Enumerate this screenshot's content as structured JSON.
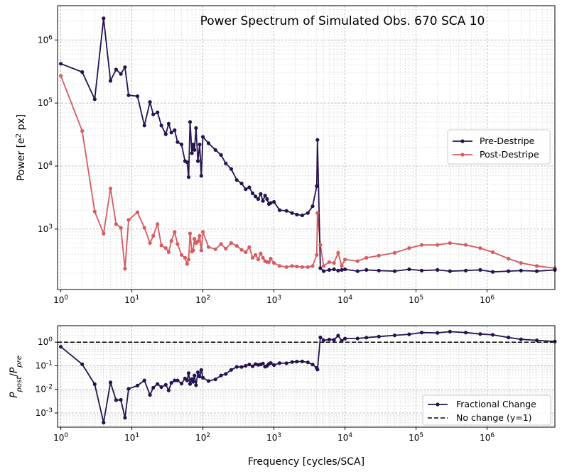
{
  "colors": {
    "pre": "#251350",
    "post": "#d55b60",
    "fractional": "#251350",
    "reference": "#000000"
  },
  "chart_data": [
    {
      "type": "line",
      "title": "Power Spectrum of Simulated Obs. 670 SCA 10",
      "xlabel": "Frequency [cycles/SCA]",
      "ylabel_main": "Power [e",
      "ylabel_sup": "2",
      "ylabel_tail": " px]",
      "xscale": "log",
      "yscale": "log",
      "xlim": [
        0.9,
        9000000
      ],
      "ylim": [
        110,
        3500000
      ],
      "xticks": [
        {
          "v": 1,
          "e": "0"
        },
        {
          "v": 10,
          "e": "1"
        },
        {
          "v": 100,
          "e": "2"
        },
        {
          "v": 1000,
          "e": "3"
        },
        {
          "v": 10000,
          "e": "4"
        },
        {
          "v": 100000,
          "e": "5"
        },
        {
          "v": 1000000,
          "e": "6"
        }
      ],
      "yticks": [
        {
          "v": 1000,
          "e": "3"
        },
        {
          "v": 10000,
          "e": "4"
        },
        {
          "v": 100000,
          "e": "5"
        },
        {
          "v": 1000000,
          "e": "6"
        }
      ],
      "legend": {
        "position": "center-right",
        "entries": [
          "Pre-Destripe",
          "Post-Destripe"
        ]
      },
      "grid": true,
      "series": [
        {
          "name": "Pre-Destripe",
          "x": [
            1,
            2,
            3,
            4,
            5,
            6,
            7,
            8,
            9,
            12,
            15,
            18,
            20,
            23,
            26,
            30,
            33,
            36,
            40,
            44,
            50,
            56,
            60,
            63,
            66,
            70,
            73,
            76,
            80,
            85,
            90,
            95,
            100,
            120,
            150,
            180,
            210,
            250,
            300,
            350,
            400,
            450,
            500,
            550,
            600,
            650,
            700,
            750,
            800,
            850,
            900,
            1000,
            1200,
            1500,
            1800,
            2100,
            2500,
            3000,
            3500,
            4000,
            4096,
            4500,
            5000,
            6000,
            7000,
            8000,
            9000,
            10000,
            15000,
            20000,
            30000,
            50000,
            80000,
            120000,
            200000,
            300000,
            500000,
            800000,
            1200000,
            2000000,
            3000000,
            5000000,
            9000000
          ],
          "values": [
            420000,
            310000,
            115000,
            2200000,
            225000,
            340000,
            290000,
            370000,
            133000,
            128000,
            44000,
            104000,
            66000,
            71000,
            44000,
            32000,
            47000,
            34000,
            37000,
            24000,
            22000,
            12000,
            11500,
            6700,
            50000,
            16000,
            22000,
            18000,
            40000,
            12000,
            22000,
            7000,
            29000,
            23000,
            18000,
            15000,
            11000,
            9000,
            6000,
            5300,
            4300,
            4600,
            3700,
            3300,
            3000,
            3600,
            2800,
            3400,
            3000,
            2500,
            2600,
            2700,
            2000,
            1950,
            1800,
            1700,
            1650,
            1800,
            2300,
            4800,
            26000,
            240,
            215,
            225,
            230,
            220,
            225,
            230,
            215,
            225,
            220,
            215,
            230,
            220,
            225,
            215,
            220,
            225,
            210,
            215,
            220,
            215,
            225
          ]
        },
        {
          "name": "Post-Destripe",
          "x": [
            1,
            2,
            3,
            4,
            5,
            6,
            7,
            8,
            9,
            12,
            15,
            18,
            20,
            23,
            26,
            30,
            33,
            36,
            40,
            44,
            50,
            56,
            60,
            63,
            66,
            70,
            73,
            76,
            80,
            85,
            90,
            95,
            100,
            120,
            150,
            180,
            210,
            250,
            300,
            350,
            400,
            450,
            500,
            550,
            600,
            650,
            700,
            750,
            800,
            850,
            900,
            1000,
            1200,
            1500,
            1800,
            2100,
            2500,
            3000,
            3500,
            4000,
            4096,
            4500,
            5000,
            6000,
            7000,
            8000,
            9000,
            10000,
            15000,
            20000,
            30000,
            50000,
            80000,
            120000,
            200000,
            300000,
            500000,
            800000,
            1200000,
            2000000,
            3000000,
            5000000,
            9000000
          ],
          "values": [
            270000,
            36000,
            1900,
            850,
            4400,
            1200,
            1050,
            235,
            1400,
            1850,
            1050,
            600,
            780,
            1200,
            550,
            500,
            430,
            650,
            900,
            580,
            390,
            350,
            280,
            330,
            850,
            440,
            460,
            700,
            600,
            640,
            780,
            460,
            900,
            520,
            480,
            580,
            490,
            600,
            540,
            470,
            430,
            520,
            350,
            390,
            330,
            410,
            350,
            310,
            300,
            300,
            340,
            290,
            260,
            250,
            260,
            255,
            250,
            250,
            260,
            390,
            1800,
            560,
            260,
            300,
            290,
            420,
            260,
            330,
            310,
            350,
            380,
            420,
            500,
            560,
            560,
            600,
            560,
            500,
            430,
            340,
            290,
            260,
            240
          ]
        }
      ]
    },
    {
      "type": "line",
      "xlabel": "Frequency [cycles/SCA]",
      "ylabel": "P_post / P_pre",
      "xscale": "log",
      "yscale": "log",
      "xlim": [
        0.9,
        9000000
      ],
      "ylim": [
        0.00025,
        5
      ],
      "xticks": [
        {
          "v": 1,
          "e": "0"
        },
        {
          "v": 10,
          "e": "1"
        },
        {
          "v": 100,
          "e": "2"
        },
        {
          "v": 1000,
          "e": "3"
        },
        {
          "v": 10000,
          "e": "4"
        },
        {
          "v": 100000,
          "e": "5"
        },
        {
          "v": 1000000,
          "e": "6"
        }
      ],
      "yticks": [
        {
          "v": 0.001,
          "e": "-3"
        },
        {
          "v": 0.01,
          "e": "-2"
        },
        {
          "v": 0.1,
          "e": "-1"
        },
        {
          "v": 1,
          "e": "0"
        }
      ],
      "legend": {
        "position": "bottom-right",
        "entries": [
          "Fractional Change",
          "No change (y=1)"
        ]
      },
      "reference_line": {
        "y": 1,
        "label": "No change (y=1)"
      },
      "grid": true,
      "series": [
        {
          "name": "Fractional Change",
          "x": [
            1,
            2,
            3,
            4,
            5,
            6,
            7,
            8,
            9,
            12,
            15,
            18,
            20,
            23,
            26,
            30,
            33,
            36,
            40,
            44,
            50,
            56,
            60,
            63,
            66,
            70,
            73,
            76,
            80,
            85,
            90,
            95,
            100,
            120,
            150,
            180,
            210,
            250,
            300,
            350,
            400,
            450,
            500,
            550,
            600,
            650,
            700,
            750,
            800,
            850,
            900,
            1000,
            1200,
            1500,
            1800,
            2100,
            2500,
            3000,
            3500,
            4000,
            4096,
            4500,
            5000,
            6000,
            7000,
            8000,
            9000,
            10000,
            15000,
            20000,
            30000,
            50000,
            80000,
            120000,
            200000,
            300000,
            500000,
            800000,
            1200000,
            2000000,
            3000000,
            5000000,
            9000000
          ],
          "values": [
            0.64,
            0.116,
            0.0165,
            0.00039,
            0.0196,
            0.0035,
            0.0036,
            0.00063,
            0.0105,
            0.0145,
            0.024,
            0.0058,
            0.0118,
            0.0169,
            0.0125,
            0.0156,
            0.0091,
            0.019,
            0.024,
            0.024,
            0.0177,
            0.029,
            0.024,
            0.049,
            0.017,
            0.0275,
            0.021,
            0.039,
            0.015,
            0.053,
            0.035,
            0.066,
            0.031,
            0.0226,
            0.0267,
            0.039,
            0.045,
            0.067,
            0.09,
            0.089,
            0.1,
            0.113,
            0.095,
            0.118,
            0.11,
            0.114,
            0.125,
            0.091,
            0.1,
            0.12,
            0.131,
            0.107,
            0.13,
            0.128,
            0.144,
            0.15,
            0.152,
            0.139,
            0.113,
            0.081,
            0.069,
            1.6,
            1.2,
            1.3,
            1.25,
            1.9,
            1.15,
            1.43,
            1.44,
            1.56,
            1.73,
            1.95,
            2.17,
            2.55,
            2.49,
            2.79,
            2.55,
            2.22,
            2.05,
            1.58,
            1.32,
            1.2,
            1.07
          ]
        }
      ]
    }
  ]
}
